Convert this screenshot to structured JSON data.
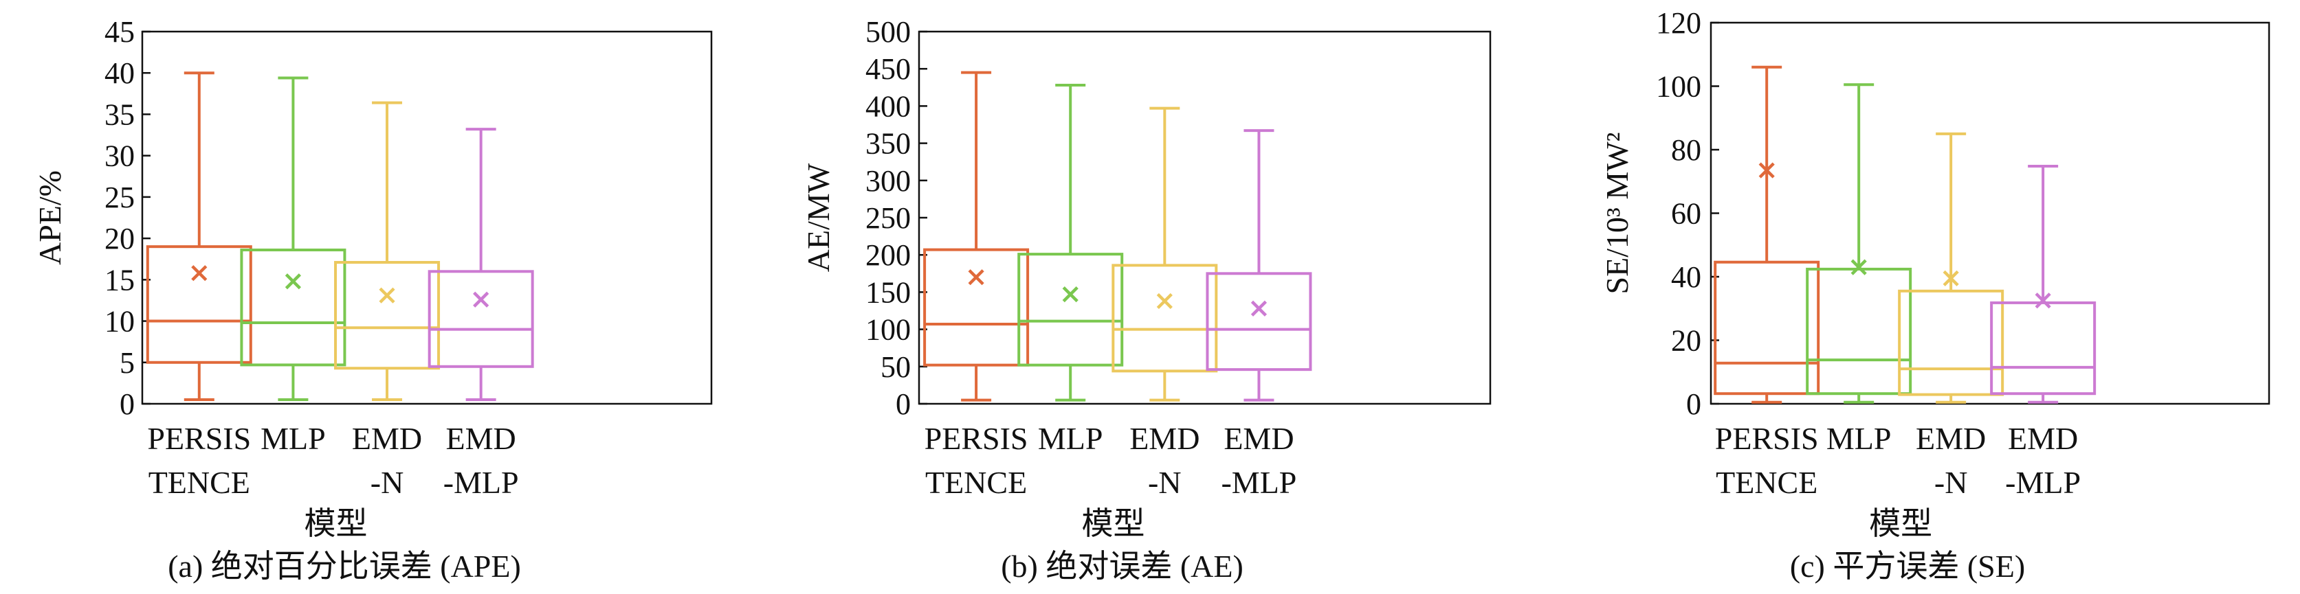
{
  "chart_data": [
    {
      "type": "box",
      "caption": "(a) 绝对百分比误差 (APE)",
      "xlabel": "模型",
      "ylabel": "APE/%",
      "ylim": [
        0,
        45
      ],
      "yticks": [
        0,
        5,
        10,
        15,
        20,
        25,
        30,
        35,
        40,
        45
      ],
      "categories": [
        [
          "PERSIS",
          "TENCE"
        ],
        [
          "MLP",
          ""
        ],
        [
          "EMD",
          "-N"
        ],
        [
          "EMD",
          "-MLP"
        ]
      ],
      "boxes": [
        {
          "color": "#e0693a",
          "whislo": 0.5,
          "q1": 5.0,
          "med": 10.0,
          "q3": 19.0,
          "whishi": 40.0,
          "mean": 15.8
        },
        {
          "color": "#7ac74f",
          "whislo": 0.5,
          "q1": 4.7,
          "med": 9.8,
          "q3": 18.6,
          "whishi": 39.4,
          "mean": 14.8
        },
        {
          "color": "#ecc85e",
          "whislo": 0.5,
          "q1": 4.3,
          "med": 9.2,
          "q3": 17.1,
          "whishi": 36.4,
          "mean": 13.1
        },
        {
          "color": "#cc7ad2",
          "whislo": 0.5,
          "q1": 4.5,
          "med": 9.0,
          "q3": 16.0,
          "whishi": 33.2,
          "mean": 12.6
        }
      ]
    },
    {
      "type": "box",
      "caption": "(b) 绝对误差 (AE)",
      "xlabel": "模型",
      "ylabel": "AE/MW",
      "ylim": [
        0,
        500
      ],
      "yticks": [
        0,
        50,
        100,
        150,
        200,
        250,
        300,
        350,
        400,
        450,
        500
      ],
      "categories": [
        [
          "PERSIS",
          "TENCE"
        ],
        [
          "MLP",
          ""
        ],
        [
          "EMD",
          "-N"
        ],
        [
          "EMD",
          "-MLP"
        ]
      ],
      "boxes": [
        {
          "color": "#e0693a",
          "whislo": 5,
          "q1": 52,
          "med": 107,
          "q3": 207,
          "whishi": 445,
          "mean": 170
        },
        {
          "color": "#7ac74f",
          "whislo": 5,
          "q1": 52,
          "med": 111,
          "q3": 201,
          "whishi": 428,
          "mean": 147
        },
        {
          "color": "#ecc85e",
          "whislo": 5,
          "q1": 44,
          "med": 100,
          "q3": 186,
          "whishi": 397,
          "mean": 138
        },
        {
          "color": "#cc7ad2",
          "whislo": 5,
          "q1": 46,
          "med": 100,
          "q3": 175,
          "whishi": 367,
          "mean": 128
        }
      ]
    },
    {
      "type": "box",
      "caption": "(c) 平方误差 (SE)",
      "xlabel": "模型",
      "ylabel": "SE/10³ MW²",
      "ylim": [
        0,
        120
      ],
      "yticks": [
        0,
        20,
        40,
        60,
        80,
        100,
        120
      ],
      "categories": [
        [
          "PERSIS",
          "TENCE"
        ],
        [
          "MLP",
          ""
        ],
        [
          "EMD",
          "-N"
        ],
        [
          "EMD",
          "-MLP"
        ]
      ],
      "boxes": [
        {
          "color": "#e0693a",
          "whislo": 0.5,
          "q1": 3.2,
          "med": 12.8,
          "q3": 44.6,
          "whishi": 106,
          "mean": 73.5
        },
        {
          "color": "#7ac74f",
          "whislo": 0.5,
          "q1": 3.2,
          "med": 13.8,
          "q3": 42.4,
          "whishi": 100.5,
          "mean": 43.0
        },
        {
          "color": "#ecc85e",
          "whislo": 0.5,
          "q1": 2.9,
          "med": 11.0,
          "q3": 35.5,
          "whishi": 85.0,
          "mean": 39.5
        },
        {
          "color": "#cc7ad2",
          "whislo": 0.5,
          "q1": 3.2,
          "med": 11.5,
          "q3": 31.8,
          "whishi": 74.8,
          "mean": 32.5
        }
      ]
    }
  ]
}
